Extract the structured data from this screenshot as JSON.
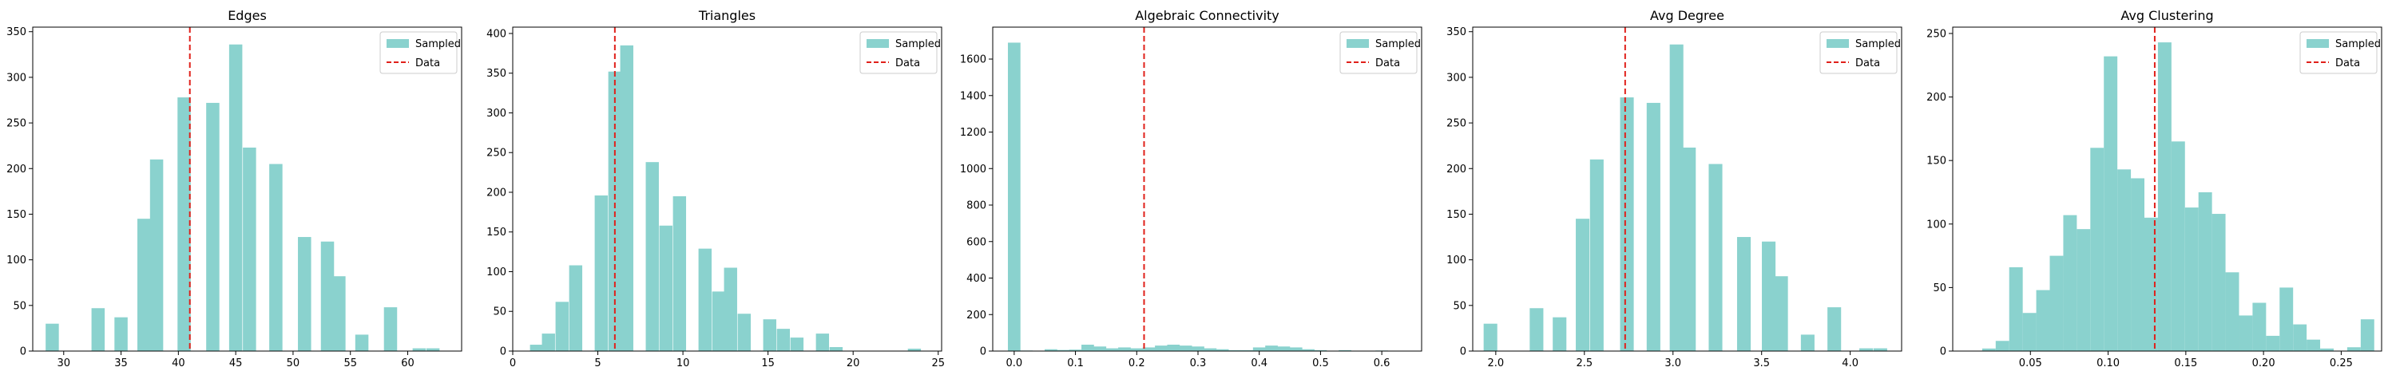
{
  "figure": {
    "sampled_color": "#8ad2ce",
    "data_line_color": "#e0201a",
    "axis_color": "#000000"
  },
  "chart_data": [
    {
      "type": "bar",
      "title": "Edges",
      "xlabel": "",
      "ylabel": "",
      "xlim": [
        27.3,
        64.7
      ],
      "ylim": [
        0,
        355
      ],
      "xticks": [
        30,
        35,
        40,
        45,
        50,
        55,
        60
      ],
      "yticks": [
        0,
        50,
        100,
        150,
        200,
        250,
        300,
        350
      ],
      "bin_width": 1.15,
      "bins": [
        {
          "x": 29.0,
          "y": 30
        },
        {
          "x": 33.0,
          "y": 47
        },
        {
          "x": 35.0,
          "y": 37
        },
        {
          "x": 37.0,
          "y": 145
        },
        {
          "x": 38.1,
          "y": 210
        },
        {
          "x": 40.5,
          "y": 278
        },
        {
          "x": 43.0,
          "y": 272
        },
        {
          "x": 45.0,
          "y": 336
        },
        {
          "x": 46.2,
          "y": 223
        },
        {
          "x": 48.5,
          "y": 205
        },
        {
          "x": 51.0,
          "y": 125
        },
        {
          "x": 53.0,
          "y": 120
        },
        {
          "x": 54.0,
          "y": 82
        },
        {
          "x": 56.0,
          "y": 18
        },
        {
          "x": 58.5,
          "y": 48
        },
        {
          "x": 61.0,
          "y": 3
        },
        {
          "x": 62.2,
          "y": 3
        }
      ],
      "data_value": 41,
      "legend": {
        "placement": "top-right",
        "entries": [
          "Sampled",
          "Data"
        ]
      }
    },
    {
      "type": "bar",
      "title": "Triangles",
      "xlabel": "",
      "ylabel": "",
      "xlim": [
        0.0,
        25.2
      ],
      "ylim": [
        0,
        408
      ],
      "xticks": [
        0,
        5,
        10,
        15,
        20,
        25
      ],
      "yticks": [
        0,
        50,
        100,
        150,
        200,
        250,
        300,
        350,
        400
      ],
      "bin_width": 0.77,
      "bins": [
        {
          "x": 1.4,
          "y": 8
        },
        {
          "x": 2.1,
          "y": 22
        },
        {
          "x": 2.9,
          "y": 62
        },
        {
          "x": 3.7,
          "y": 108
        },
        {
          "x": 5.2,
          "y": 196
        },
        {
          "x": 6.0,
          "y": 352
        },
        {
          "x": 6.7,
          "y": 385
        },
        {
          "x": 8.2,
          "y": 238
        },
        {
          "x": 9.0,
          "y": 158
        },
        {
          "x": 9.8,
          "y": 195
        },
        {
          "x": 11.3,
          "y": 129
        },
        {
          "x": 12.1,
          "y": 75
        },
        {
          "x": 12.8,
          "y": 105
        },
        {
          "x": 13.6,
          "y": 47
        },
        {
          "x": 15.1,
          "y": 40
        },
        {
          "x": 15.9,
          "y": 28
        },
        {
          "x": 16.7,
          "y": 17
        },
        {
          "x": 18.2,
          "y": 22
        },
        {
          "x": 19.0,
          "y": 5
        },
        {
          "x": 23.6,
          "y": 3
        }
      ],
      "data_value": 6,
      "legend": {
        "placement": "top-right",
        "entries": [
          "Sampled",
          "Data"
        ]
      }
    },
    {
      "type": "bar",
      "title": "Algebraic Connectivity",
      "xlabel": "",
      "ylabel": "",
      "xlim": [
        -0.035,
        0.665
      ],
      "ylim": [
        0,
        1775
      ],
      "xticks": [
        0.0,
        0.1,
        0.2,
        0.3,
        0.4,
        0.5,
        0.6
      ],
      "yticks": [
        0,
        200,
        400,
        600,
        800,
        1000,
        1200,
        1400,
        1600
      ],
      "bin_width": 0.0205,
      "bins": [
        {
          "x": 0.0,
          "y": 1690
        },
        {
          "x": 0.02,
          "y": 3
        },
        {
          "x": 0.06,
          "y": 10
        },
        {
          "x": 0.08,
          "y": 6
        },
        {
          "x": 0.1,
          "y": 8
        },
        {
          "x": 0.12,
          "y": 35
        },
        {
          "x": 0.14,
          "y": 25
        },
        {
          "x": 0.16,
          "y": 15
        },
        {
          "x": 0.18,
          "y": 20
        },
        {
          "x": 0.2,
          "y": 15
        },
        {
          "x": 0.22,
          "y": 20
        },
        {
          "x": 0.24,
          "y": 30
        },
        {
          "x": 0.26,
          "y": 35
        },
        {
          "x": 0.28,
          "y": 30
        },
        {
          "x": 0.3,
          "y": 25
        },
        {
          "x": 0.32,
          "y": 15
        },
        {
          "x": 0.34,
          "y": 10
        },
        {
          "x": 0.36,
          "y": 5
        },
        {
          "x": 0.38,
          "y": 5
        },
        {
          "x": 0.4,
          "y": 20
        },
        {
          "x": 0.42,
          "y": 30
        },
        {
          "x": 0.44,
          "y": 25
        },
        {
          "x": 0.46,
          "y": 20
        },
        {
          "x": 0.48,
          "y": 10
        },
        {
          "x": 0.5,
          "y": 5
        },
        {
          "x": 0.54,
          "y": 5
        },
        {
          "x": 0.6,
          "y": 3
        }
      ],
      "data_value": 0.212,
      "legend": {
        "placement": "top-right",
        "entries": [
          "Sampled",
          "Data"
        ]
      }
    },
    {
      "type": "bar",
      "title": "Avg Degree",
      "xlabel": "",
      "ylabel": "",
      "xlim": [
        1.87,
        4.29
      ],
      "ylim": [
        0,
        355
      ],
      "xticks": [
        2.0,
        2.5,
        3.0,
        3.5,
        4.0
      ],
      "yticks": [
        0,
        50,
        100,
        150,
        200,
        250,
        300,
        350
      ],
      "bin_width": 0.077,
      "bins": [
        {
          "x": 1.97,
          "y": 30
        },
        {
          "x": 2.23,
          "y": 47
        },
        {
          "x": 2.36,
          "y": 37
        },
        {
          "x": 2.49,
          "y": 145
        },
        {
          "x": 2.57,
          "y": 210
        },
        {
          "x": 2.74,
          "y": 278
        },
        {
          "x": 2.89,
          "y": 272
        },
        {
          "x": 3.02,
          "y": 336
        },
        {
          "x": 3.09,
          "y": 223
        },
        {
          "x": 3.24,
          "y": 205
        },
        {
          "x": 3.4,
          "y": 125
        },
        {
          "x": 3.54,
          "y": 120
        },
        {
          "x": 3.61,
          "y": 82
        },
        {
          "x": 3.76,
          "y": 18
        },
        {
          "x": 3.91,
          "y": 48
        },
        {
          "x": 4.09,
          "y": 3
        },
        {
          "x": 4.17,
          "y": 3
        }
      ],
      "data_value": 2.73,
      "legend": {
        "placement": "top-right",
        "entries": [
          "Sampled",
          "Data"
        ]
      }
    },
    {
      "type": "bar",
      "title": "Avg Clustering",
      "xlabel": "",
      "ylabel": "",
      "xlim": [
        0.0,
        0.276
      ],
      "ylim": [
        0,
        255
      ],
      "xticks": [
        0.05,
        0.1,
        0.15,
        0.2,
        0.25
      ],
      "yticks": [
        0,
        50,
        100,
        150,
        200,
        250
      ],
      "bin_width": 0.0087,
      "bins": [
        {
          "x": 0.0233,
          "y": 2
        },
        {
          "x": 0.032,
          "y": 8
        },
        {
          "x": 0.0407,
          "y": 66
        },
        {
          "x": 0.0494,
          "y": 30
        },
        {
          "x": 0.0581,
          "y": 48
        },
        {
          "x": 0.0668,
          "y": 75
        },
        {
          "x": 0.0755,
          "y": 107
        },
        {
          "x": 0.0842,
          "y": 96
        },
        {
          "x": 0.0929,
          "y": 160
        },
        {
          "x": 0.1016,
          "y": 232
        },
        {
          "x": 0.1103,
          "y": 143
        },
        {
          "x": 0.119,
          "y": 136
        },
        {
          "x": 0.1277,
          "y": 105
        },
        {
          "x": 0.1364,
          "y": 243
        },
        {
          "x": 0.1451,
          "y": 165
        },
        {
          "x": 0.1538,
          "y": 113
        },
        {
          "x": 0.1625,
          "y": 125
        },
        {
          "x": 0.1712,
          "y": 108
        },
        {
          "x": 0.1799,
          "y": 62
        },
        {
          "x": 0.1886,
          "y": 28
        },
        {
          "x": 0.1973,
          "y": 38
        },
        {
          "x": 0.206,
          "y": 12
        },
        {
          "x": 0.2147,
          "y": 50
        },
        {
          "x": 0.2234,
          "y": 21
        },
        {
          "x": 0.2321,
          "y": 9
        },
        {
          "x": 0.2408,
          "y": 2
        },
        {
          "x": 0.2582,
          "y": 3
        },
        {
          "x": 0.2669,
          "y": 25
        }
      ],
      "data_value": 0.13,
      "legend": {
        "placement": "top-right",
        "entries": [
          "Sampled",
          "Data"
        ]
      }
    }
  ]
}
